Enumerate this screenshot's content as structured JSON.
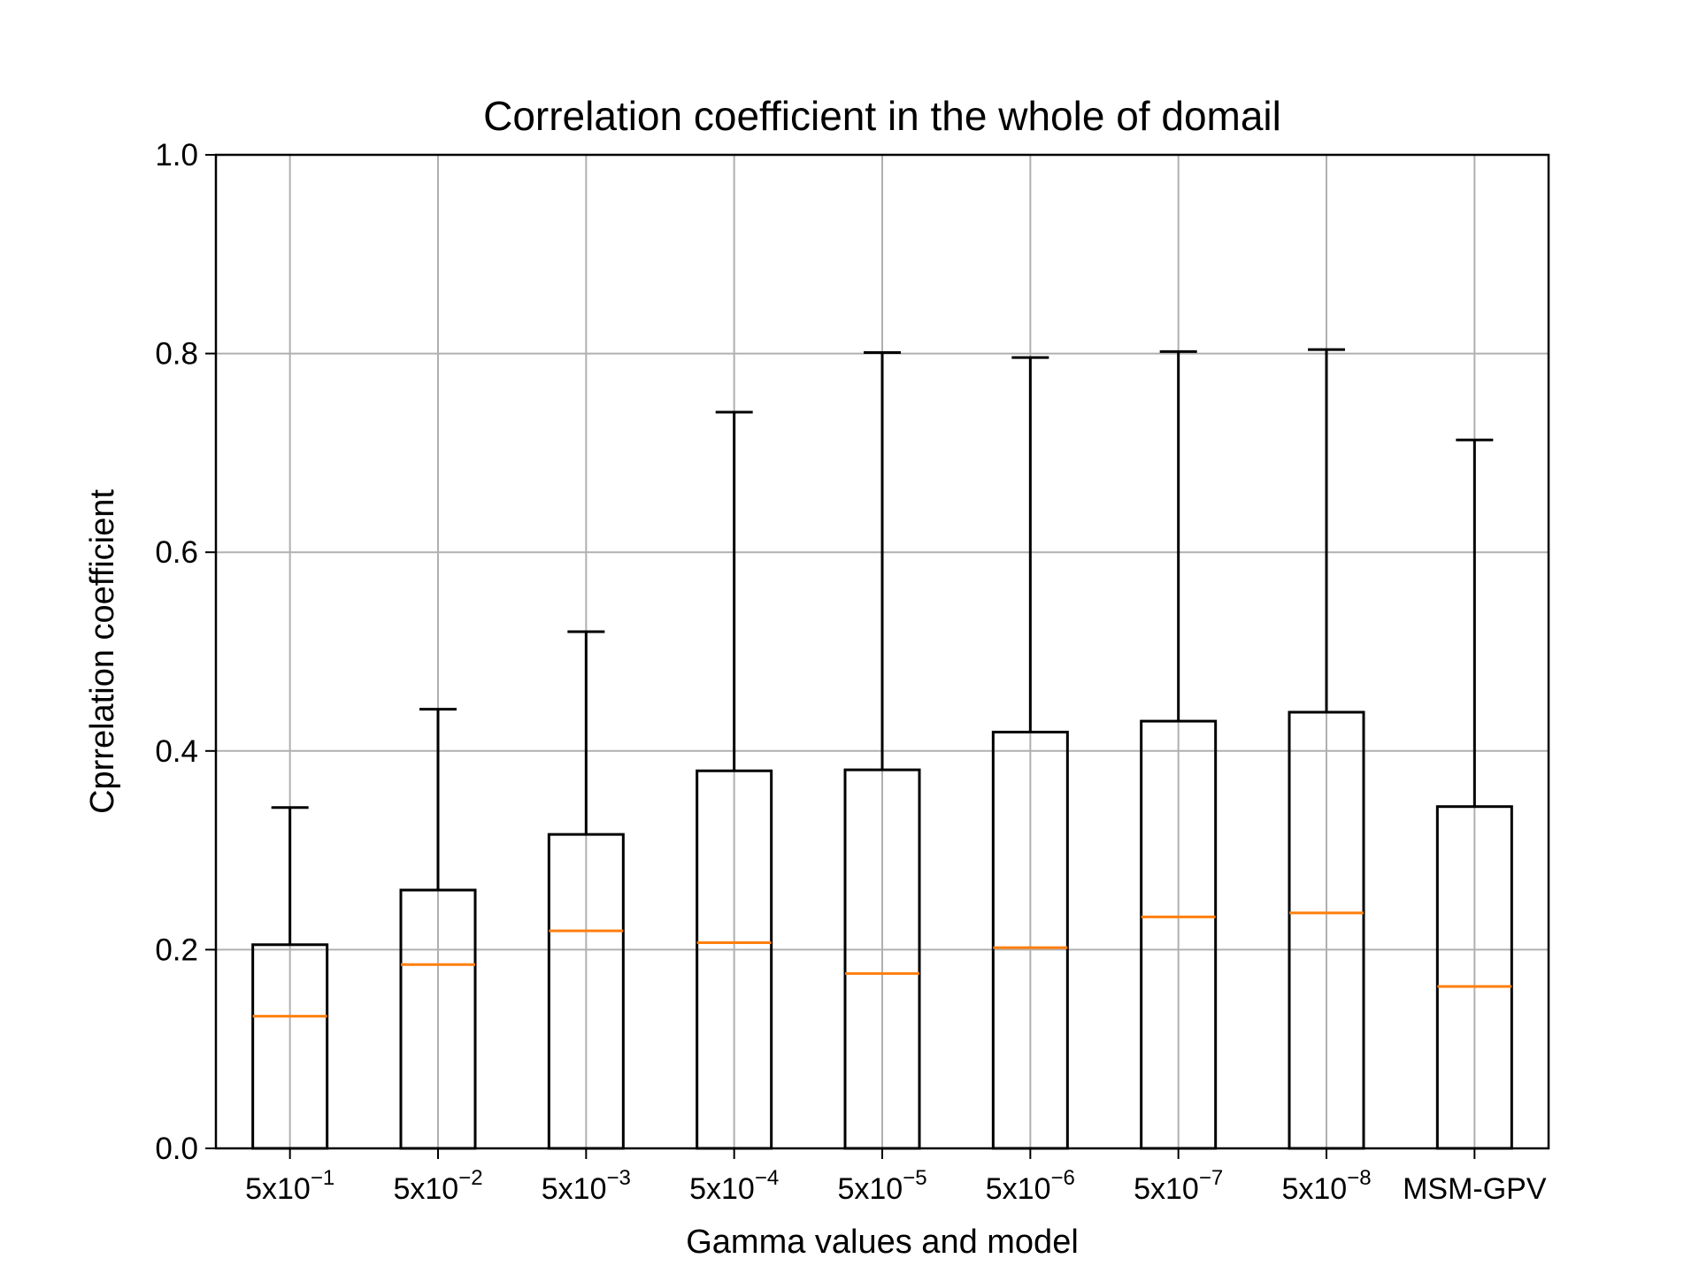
{
  "chart_data": {
    "type": "box",
    "title": "Correlation coefficient in the whole of domail",
    "xlabel": "Gamma values and model",
    "ylabel": "Cprrelation coefficient",
    "ylim": [
      0.0,
      1.0
    ],
    "yticks": [
      "0.0",
      "0.2",
      "0.4",
      "0.6",
      "0.8",
      "1.0"
    ],
    "grid": true,
    "colors": {
      "box": "#000000",
      "median": "#ff7f0e",
      "grid": "#b0b0b0"
    },
    "categories": [
      {
        "base": "5x10",
        "exp": "−1"
      },
      {
        "base": "5x10",
        "exp": "−2"
      },
      {
        "base": "5x10",
        "exp": "−3"
      },
      {
        "base": "5x10",
        "exp": "−4"
      },
      {
        "base": "5x10",
        "exp": "−5"
      },
      {
        "base": "5x10",
        "exp": "−6"
      },
      {
        "base": "5x10",
        "exp": "−7"
      },
      {
        "base": "5x10",
        "exp": "−8"
      },
      {
        "base": "MSM-GPV",
        "exp": ""
      }
    ],
    "boxes": [
      {
        "whislo": 0.0,
        "q1": 0.0,
        "med": 0.133,
        "q3": 0.205,
        "whishi": 0.343
      },
      {
        "whislo": 0.0,
        "q1": 0.0,
        "med": 0.185,
        "q3": 0.26,
        "whishi": 0.442
      },
      {
        "whislo": 0.0,
        "q1": 0.0,
        "med": 0.219,
        "q3": 0.316,
        "whishi": 0.52
      },
      {
        "whislo": 0.0,
        "q1": 0.0,
        "med": 0.207,
        "q3": 0.38,
        "whishi": 0.741
      },
      {
        "whislo": 0.0,
        "q1": 0.0,
        "med": 0.176,
        "q3": 0.381,
        "whishi": 0.801
      },
      {
        "whislo": 0.0,
        "q1": 0.0,
        "med": 0.202,
        "q3": 0.419,
        "whishi": 0.796
      },
      {
        "whislo": 0.0,
        "q1": 0.0,
        "med": 0.233,
        "q3": 0.43,
        "whishi": 0.802
      },
      {
        "whislo": 0.0,
        "q1": 0.0,
        "med": 0.237,
        "q3": 0.439,
        "whishi": 0.804
      },
      {
        "whislo": 0.0,
        "q1": 0.0,
        "med": 0.163,
        "q3": 0.344,
        "whishi": 0.713
      }
    ]
  }
}
